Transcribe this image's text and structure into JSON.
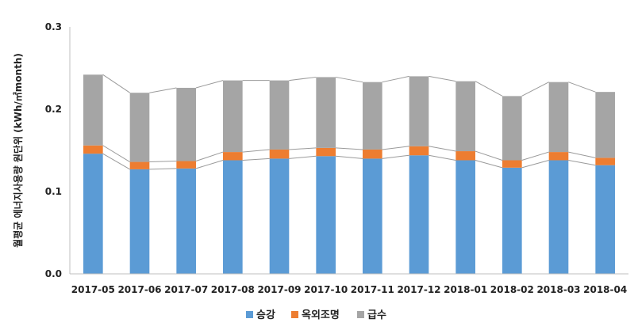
{
  "chart_data": {
    "type": "bar",
    "stacked": true,
    "categories": [
      "2017-05",
      "2017-06",
      "2017-07",
      "2017-08",
      "2017-09",
      "2017-10",
      "2017-11",
      "2017-12",
      "2018-01",
      "2018-02",
      "2018-03",
      "2018-04"
    ],
    "series": [
      {
        "name": "승강",
        "color": "#5b9bd5",
        "values": [
          0.146,
          0.127,
          0.128,
          0.138,
          0.14,
          0.143,
          0.14,
          0.144,
          0.138,
          0.129,
          0.138,
          0.132
        ]
      },
      {
        "name": "옥외조명",
        "color": "#ed7d31",
        "values": [
          0.01,
          0.009,
          0.009,
          0.01,
          0.011,
          0.01,
          0.011,
          0.011,
          0.011,
          0.009,
          0.01,
          0.009
        ]
      },
      {
        "name": "급수",
        "color": "#a5a5a5",
        "values": [
          0.086,
          0.084,
          0.089,
          0.087,
          0.084,
          0.086,
          0.082,
          0.085,
          0.085,
          0.078,
          0.085,
          0.08
        ]
      }
    ],
    "ylabel": "월평균 에너지사용량 원단위 (kWh/㎡month)",
    "ylim": [
      0,
      0.3
    ],
    "yticks": [
      "0.0",
      "0.1",
      "0.2",
      "0.3"
    ],
    "grid": false,
    "legend": "bottom",
    "series_lines": true
  }
}
